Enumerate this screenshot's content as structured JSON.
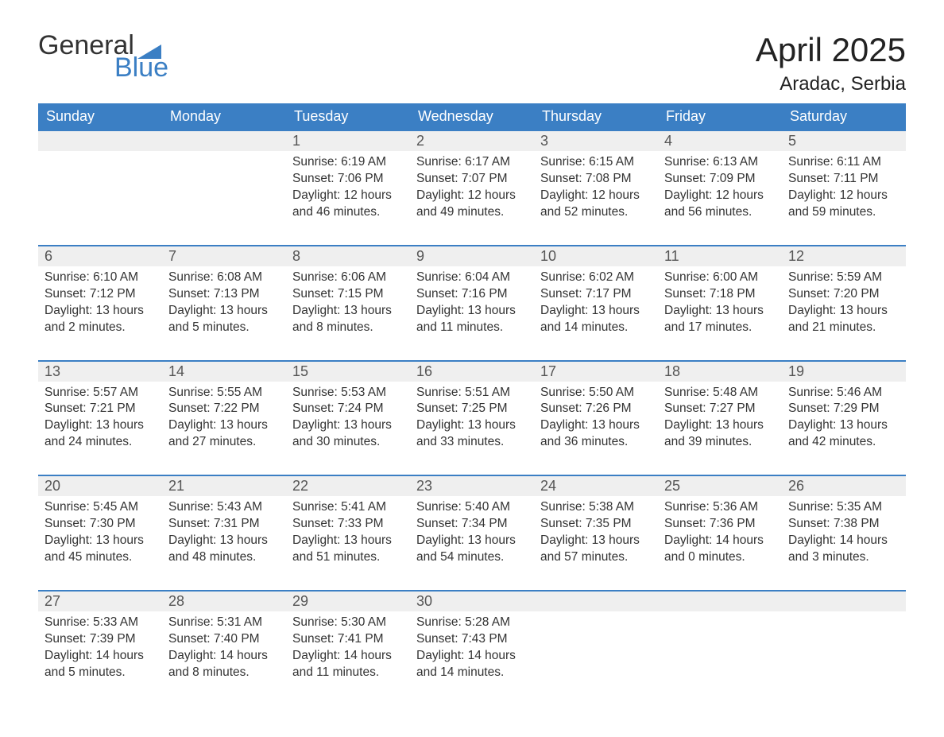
{
  "brand": {
    "text_general": "General",
    "text_blue": "Blue",
    "flag_color": "#3b7fc4"
  },
  "title": "April 2025",
  "location": "Aradac, Serbia",
  "colors": {
    "header_bg": "#3b7fc4",
    "header_text": "#ffffff",
    "row_border": "#3b7fc4",
    "daynum_bg": "#efefef",
    "body_text": "#333333",
    "brand_blue": "#3b7fc4"
  },
  "days_of_week": [
    "Sunday",
    "Monday",
    "Tuesday",
    "Wednesday",
    "Thursday",
    "Friday",
    "Saturday"
  ],
  "weeks": [
    [
      null,
      null,
      {
        "n": "1",
        "sunrise": "Sunrise: 6:19 AM",
        "sunset": "Sunset: 7:06 PM",
        "day1": "Daylight: 12 hours",
        "day2": "and 46 minutes."
      },
      {
        "n": "2",
        "sunrise": "Sunrise: 6:17 AM",
        "sunset": "Sunset: 7:07 PM",
        "day1": "Daylight: 12 hours",
        "day2": "and 49 minutes."
      },
      {
        "n": "3",
        "sunrise": "Sunrise: 6:15 AM",
        "sunset": "Sunset: 7:08 PM",
        "day1": "Daylight: 12 hours",
        "day2": "and 52 minutes."
      },
      {
        "n": "4",
        "sunrise": "Sunrise: 6:13 AM",
        "sunset": "Sunset: 7:09 PM",
        "day1": "Daylight: 12 hours",
        "day2": "and 56 minutes."
      },
      {
        "n": "5",
        "sunrise": "Sunrise: 6:11 AM",
        "sunset": "Sunset: 7:11 PM",
        "day1": "Daylight: 12 hours",
        "day2": "and 59 minutes."
      }
    ],
    [
      {
        "n": "6",
        "sunrise": "Sunrise: 6:10 AM",
        "sunset": "Sunset: 7:12 PM",
        "day1": "Daylight: 13 hours",
        "day2": "and 2 minutes."
      },
      {
        "n": "7",
        "sunrise": "Sunrise: 6:08 AM",
        "sunset": "Sunset: 7:13 PM",
        "day1": "Daylight: 13 hours",
        "day2": "and 5 minutes."
      },
      {
        "n": "8",
        "sunrise": "Sunrise: 6:06 AM",
        "sunset": "Sunset: 7:15 PM",
        "day1": "Daylight: 13 hours",
        "day2": "and 8 minutes."
      },
      {
        "n": "9",
        "sunrise": "Sunrise: 6:04 AM",
        "sunset": "Sunset: 7:16 PM",
        "day1": "Daylight: 13 hours",
        "day2": "and 11 minutes."
      },
      {
        "n": "10",
        "sunrise": "Sunrise: 6:02 AM",
        "sunset": "Sunset: 7:17 PM",
        "day1": "Daylight: 13 hours",
        "day2": "and 14 minutes."
      },
      {
        "n": "11",
        "sunrise": "Sunrise: 6:00 AM",
        "sunset": "Sunset: 7:18 PM",
        "day1": "Daylight: 13 hours",
        "day2": "and 17 minutes."
      },
      {
        "n": "12",
        "sunrise": "Sunrise: 5:59 AM",
        "sunset": "Sunset: 7:20 PM",
        "day1": "Daylight: 13 hours",
        "day2": "and 21 minutes."
      }
    ],
    [
      {
        "n": "13",
        "sunrise": "Sunrise: 5:57 AM",
        "sunset": "Sunset: 7:21 PM",
        "day1": "Daylight: 13 hours",
        "day2": "and 24 minutes."
      },
      {
        "n": "14",
        "sunrise": "Sunrise: 5:55 AM",
        "sunset": "Sunset: 7:22 PM",
        "day1": "Daylight: 13 hours",
        "day2": "and 27 minutes."
      },
      {
        "n": "15",
        "sunrise": "Sunrise: 5:53 AM",
        "sunset": "Sunset: 7:24 PM",
        "day1": "Daylight: 13 hours",
        "day2": "and 30 minutes."
      },
      {
        "n": "16",
        "sunrise": "Sunrise: 5:51 AM",
        "sunset": "Sunset: 7:25 PM",
        "day1": "Daylight: 13 hours",
        "day2": "and 33 minutes."
      },
      {
        "n": "17",
        "sunrise": "Sunrise: 5:50 AM",
        "sunset": "Sunset: 7:26 PM",
        "day1": "Daylight: 13 hours",
        "day2": "and 36 minutes."
      },
      {
        "n": "18",
        "sunrise": "Sunrise: 5:48 AM",
        "sunset": "Sunset: 7:27 PM",
        "day1": "Daylight: 13 hours",
        "day2": "and 39 minutes."
      },
      {
        "n": "19",
        "sunrise": "Sunrise: 5:46 AM",
        "sunset": "Sunset: 7:29 PM",
        "day1": "Daylight: 13 hours",
        "day2": "and 42 minutes."
      }
    ],
    [
      {
        "n": "20",
        "sunrise": "Sunrise: 5:45 AM",
        "sunset": "Sunset: 7:30 PM",
        "day1": "Daylight: 13 hours",
        "day2": "and 45 minutes."
      },
      {
        "n": "21",
        "sunrise": "Sunrise: 5:43 AM",
        "sunset": "Sunset: 7:31 PM",
        "day1": "Daylight: 13 hours",
        "day2": "and 48 minutes."
      },
      {
        "n": "22",
        "sunrise": "Sunrise: 5:41 AM",
        "sunset": "Sunset: 7:33 PM",
        "day1": "Daylight: 13 hours",
        "day2": "and 51 minutes."
      },
      {
        "n": "23",
        "sunrise": "Sunrise: 5:40 AM",
        "sunset": "Sunset: 7:34 PM",
        "day1": "Daylight: 13 hours",
        "day2": "and 54 minutes."
      },
      {
        "n": "24",
        "sunrise": "Sunrise: 5:38 AM",
        "sunset": "Sunset: 7:35 PM",
        "day1": "Daylight: 13 hours",
        "day2": "and 57 minutes."
      },
      {
        "n": "25",
        "sunrise": "Sunrise: 5:36 AM",
        "sunset": "Sunset: 7:36 PM",
        "day1": "Daylight: 14 hours",
        "day2": "and 0 minutes."
      },
      {
        "n": "26",
        "sunrise": "Sunrise: 5:35 AM",
        "sunset": "Sunset: 7:38 PM",
        "day1": "Daylight: 14 hours",
        "day2": "and 3 minutes."
      }
    ],
    [
      {
        "n": "27",
        "sunrise": "Sunrise: 5:33 AM",
        "sunset": "Sunset: 7:39 PM",
        "day1": "Daylight: 14 hours",
        "day2": "and 5 minutes."
      },
      {
        "n": "28",
        "sunrise": "Sunrise: 5:31 AM",
        "sunset": "Sunset: 7:40 PM",
        "day1": "Daylight: 14 hours",
        "day2": "and 8 minutes."
      },
      {
        "n": "29",
        "sunrise": "Sunrise: 5:30 AM",
        "sunset": "Sunset: 7:41 PM",
        "day1": "Daylight: 14 hours",
        "day2": "and 11 minutes."
      },
      {
        "n": "30",
        "sunrise": "Sunrise: 5:28 AM",
        "sunset": "Sunset: 7:43 PM",
        "day1": "Daylight: 14 hours",
        "day2": "and 14 minutes."
      },
      null,
      null,
      null
    ]
  ]
}
